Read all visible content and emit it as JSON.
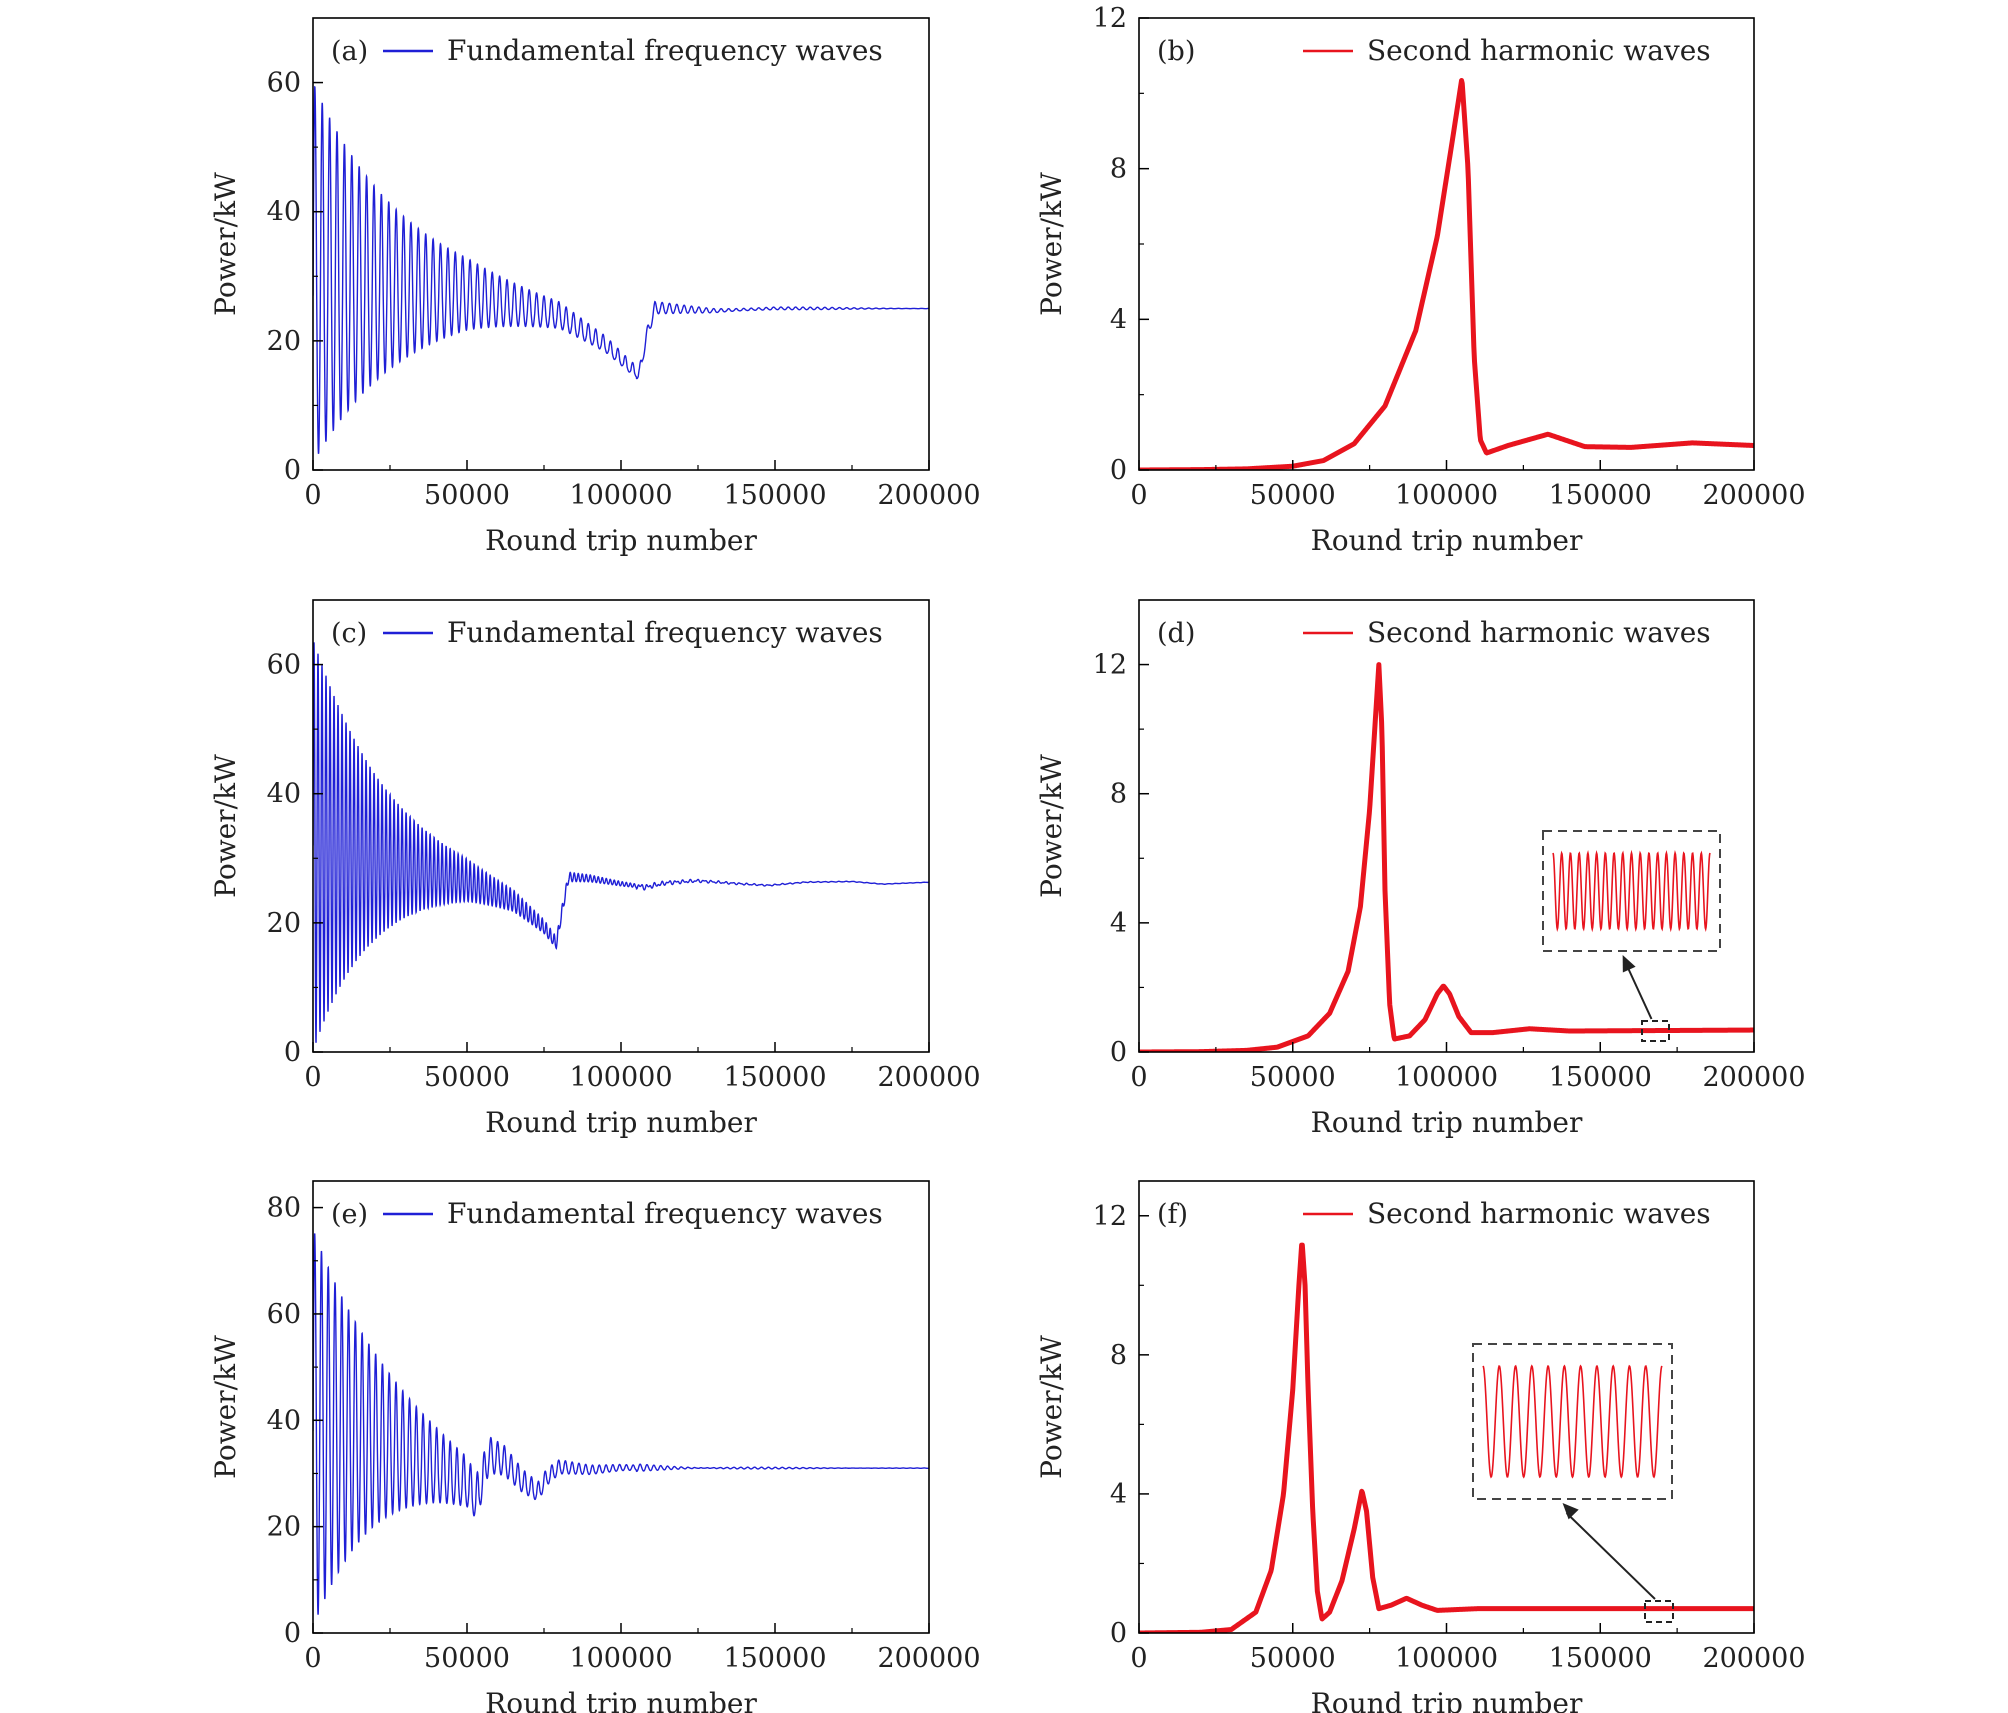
{
  "chart_data": [
    {
      "type": "line",
      "panel_label": "(a)",
      "series": [
        {
          "name": "Fundamental frequency waves",
          "color": "#1f1fd6",
          "envelope": {
            "upper_start": 60,
            "lower_start": 1,
            "decay_round_trips": 30000,
            "osc_period": 2400
          },
          "baseline": [
            [
              0,
              27
            ],
            [
              20000,
              27
            ],
            [
              50000,
              26.5
            ],
            [
              80000,
              23.5
            ],
            [
              95000,
              19
            ],
            [
              103000,
              15.5
            ],
            [
              106000,
              14.5
            ],
            [
              108000,
              20
            ],
            [
              111000,
              25
            ],
            [
              130000,
              24.6
            ],
            [
              150000,
              25
            ],
            [
              200000,
              25
            ]
          ]
        }
      ],
      "xlabel": "Round trip number",
      "ylabel": "Power/kW",
      "xlim": [
        0,
        200000
      ],
      "ylim": [
        0,
        70
      ],
      "xticks": [
        "0",
        "50000",
        "100000",
        "150000",
        "200000"
      ],
      "yticks": [
        "0",
        "20",
        "40",
        "60"
      ]
    },
    {
      "type": "line",
      "panel_label": "(b)",
      "series": [
        {
          "name": "Second harmonic waves",
          "color": "#e8141e",
          "points": [
            [
              0,
              0
            ],
            [
              20000,
              0.01
            ],
            [
              35000,
              0.03
            ],
            [
              50000,
              0.1
            ],
            [
              60000,
              0.25
            ],
            [
              70000,
              0.7
            ],
            [
              80000,
              1.7
            ],
            [
              90000,
              3.7
            ],
            [
              97000,
              6.2
            ],
            [
              102000,
              8.8
            ],
            [
              105000,
              10.4
            ],
            [
              107000,
              8
            ],
            [
              109000,
              3
            ],
            [
              111000,
              0.8
            ],
            [
              113000,
              0.45
            ],
            [
              120000,
              0.65
            ],
            [
              133000,
              0.95
            ],
            [
              145000,
              0.62
            ],
            [
              160000,
              0.6
            ],
            [
              180000,
              0.72
            ],
            [
              200000,
              0.65
            ]
          ]
        }
      ],
      "xlabel": "Round trip number",
      "ylabel": "Power/kW",
      "xlim": [
        0,
        200000
      ],
      "ylim": [
        0,
        12
      ],
      "xticks": [
        "0",
        "50000",
        "100000",
        "150000",
        "200000"
      ],
      "yticks": [
        "0",
        "4",
        "8",
        "12"
      ]
    },
    {
      "type": "line",
      "panel_label": "(c)",
      "series": [
        {
          "name": "Fundamental frequency waves",
          "color": "#1f1fd6",
          "envelope": {
            "upper_start": 64,
            "lower_start": 0,
            "decay_round_trips": 22000,
            "osc_period": 1300
          },
          "baseline": [
            [
              0,
              32
            ],
            [
              20000,
              29
            ],
            [
              50000,
              26
            ],
            [
              65000,
              23
            ],
            [
              75000,
              19
            ],
            [
              79000,
              16.5
            ],
            [
              81000,
              22
            ],
            [
              83000,
              27
            ],
            [
              90000,
              26.8
            ],
            [
              100000,
              26
            ],
            [
              108000,
              25.5
            ],
            [
              115000,
              26.2
            ],
            [
              125000,
              26.5
            ],
            [
              140000,
              26
            ],
            [
              148000,
              25.8
            ],
            [
              160000,
              26.3
            ],
            [
              175000,
              26.4
            ],
            [
              185000,
              26
            ],
            [
              200000,
              26.3
            ]
          ]
        }
      ],
      "xlabel": "Round trip number",
      "ylabel": "Power/kW",
      "xlim": [
        0,
        200000
      ],
      "ylim": [
        0,
        70
      ],
      "xticks": [
        "0",
        "50000",
        "100000",
        "150000",
        "200000"
      ],
      "yticks": [
        "0",
        "20",
        "40",
        "60"
      ]
    },
    {
      "type": "line",
      "panel_label": "(d)",
      "series": [
        {
          "name": "Second harmonic waves",
          "color": "#e8141e",
          "points": [
            [
              0,
              0
            ],
            [
              20000,
              0.01
            ],
            [
              35000,
              0.05
            ],
            [
              45000,
              0.15
            ],
            [
              55000,
              0.5
            ],
            [
              62000,
              1.2
            ],
            [
              68000,
              2.5
            ],
            [
              72000,
              4.5
            ],
            [
              75000,
              7.5
            ],
            [
              77000,
              10.5
            ],
            [
              78000,
              12
            ],
            [
              79000,
              10
            ],
            [
              80000,
              5
            ],
            [
              81500,
              1.5
            ],
            [
              83000,
              0.4
            ],
            [
              88000,
              0.5
            ],
            [
              93000,
              1
            ],
            [
              97000,
              1.8
            ],
            [
              99000,
              2.05
            ],
            [
              101000,
              1.8
            ],
            [
              104000,
              1.1
            ],
            [
              108000,
              0.6
            ],
            [
              115000,
              0.6
            ],
            [
              127000,
              0.72
            ],
            [
              140000,
              0.65
            ],
            [
              200000,
              0.68
            ]
          ]
        }
      ],
      "inset": {
        "description": "zoom of steady-state oscillation",
        "cycles": 18
      },
      "xlabel": "Round trip number",
      "ylabel": "Power/kW",
      "xlim": [
        0,
        200000
      ],
      "ylim": [
        0,
        14
      ],
      "xticks": [
        "0",
        "50000",
        "100000",
        "150000",
        "200000"
      ],
      "yticks": [
        "0",
        "4",
        "8",
        "12"
      ]
    },
    {
      "type": "line",
      "panel_label": "(e)",
      "series": [
        {
          "name": "Fundamental frequency waves",
          "color": "#1f1fd6",
          "envelope": {
            "upper_start": 76,
            "lower_start": 1,
            "decay_round_trips": 24000,
            "osc_period": 2200
          },
          "baseline": [
            [
              0,
              38
            ],
            [
              20000,
              35
            ],
            [
              40000,
              30
            ],
            [
              50000,
              27
            ],
            [
              53000,
              24
            ],
            [
              55000,
              28
            ],
            [
              57000,
              33
            ],
            [
              62000,
              32
            ],
            [
              68000,
              28
            ],
            [
              73000,
              26
            ],
            [
              76000,
              29
            ],
            [
              80000,
              31
            ],
            [
              90000,
              30.5
            ],
            [
              100000,
              31
            ],
            [
              120000,
              31
            ],
            [
              200000,
              31
            ]
          ]
        }
      ],
      "xlabel": "Round trip number",
      "ylabel": "Power/kW",
      "xlim": [
        0,
        200000
      ],
      "ylim": [
        0,
        85
      ],
      "xticks": [
        "0",
        "50000",
        "100000",
        "150000",
        "200000"
      ],
      "yticks": [
        "0",
        "20",
        "40",
        "60",
        "80"
      ]
    },
    {
      "type": "line",
      "panel_label": "(f)",
      "series": [
        {
          "name": "Second harmonic waves",
          "color": "#e8141e",
          "points": [
            [
              0,
              0
            ],
            [
              20000,
              0.02
            ],
            [
              30000,
              0.1
            ],
            [
              38000,
              0.6
            ],
            [
              43000,
              1.8
            ],
            [
              47000,
              4
            ],
            [
              50000,
              7
            ],
            [
              52000,
              10
            ],
            [
              53000,
              11.3
            ],
            [
              54000,
              10
            ],
            [
              55000,
              7
            ],
            [
              56500,
              3.5
            ],
            [
              58000,
              1.2
            ],
            [
              59500,
              0.4
            ],
            [
              62000,
              0.6
            ],
            [
              66000,
              1.5
            ],
            [
              70000,
              3
            ],
            [
              72500,
              4.1
            ],
            [
              74000,
              3.5
            ],
            [
              76000,
              1.6
            ],
            [
              78000,
              0.7
            ],
            [
              82000,
              0.8
            ],
            [
              87000,
              1
            ],
            [
              92000,
              0.8
            ],
            [
              97000,
              0.65
            ],
            [
              110000,
              0.7
            ],
            [
              200000,
              0.7
            ]
          ]
        }
      ],
      "inset": {
        "description": "zoom of steady-state oscillation",
        "cycles": 11
      },
      "xlabel": "Round trip number",
      "ylabel": "Power/kW",
      "xlim": [
        0,
        200000
      ],
      "ylim": [
        0,
        13
      ],
      "xticks": [
        "0",
        "50000",
        "100000",
        "150000",
        "200000"
      ],
      "yticks": [
        "0",
        "4",
        "8",
        "12"
      ]
    }
  ]
}
